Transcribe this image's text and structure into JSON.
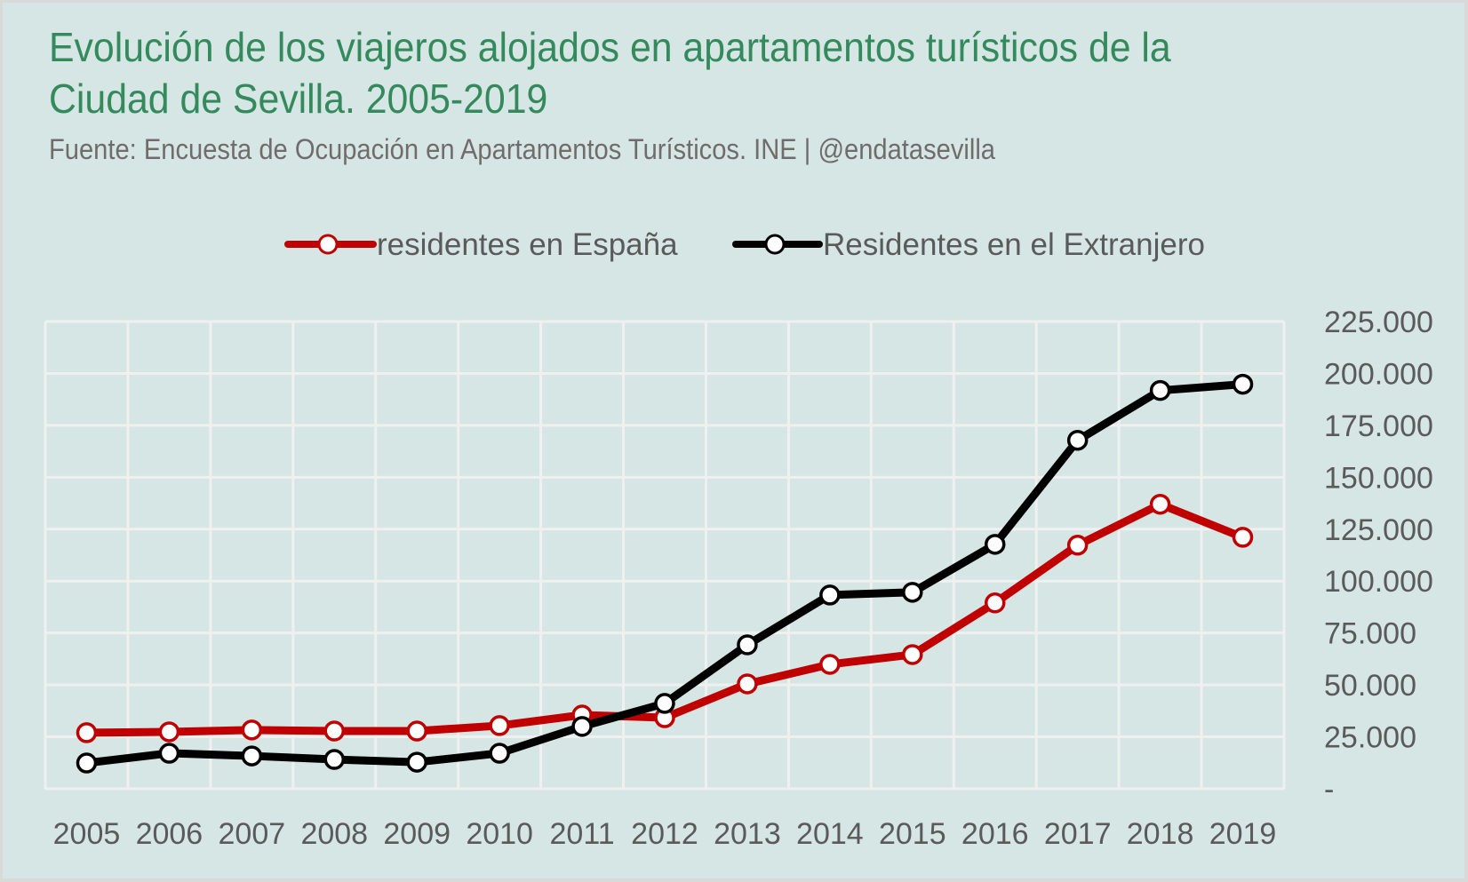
{
  "title": "Evolución de los viajeros alojados en apartamentos turísticos de la Ciudad de Sevilla. 2005-2019",
  "subtitle": "Fuente: Encuesta de Ocupación en Apartamentos Turísticos. INE | @endatasevilla",
  "colors": {
    "background": "#d6e6e4",
    "frame": "#d9d9d9",
    "grid": "#f0f0f0",
    "title": "#348a5c",
    "subtitle": "#706c6c",
    "tick_text": "#5a5a5a",
    "series_espana": "#c00000",
    "series_extranjero": "#000000"
  },
  "chart_data": {
    "type": "line",
    "title": "Evolución de los viajeros alojados en apartamentos turísticos de la Ciudad de Sevilla. 2005-2019",
    "subtitle": "Fuente: Encuesta de Ocupación en Apartamentos Turísticos. INE | @endatasevilla",
    "xlabel": "",
    "ylabel": "",
    "x": [
      "2005",
      "2006",
      "2007",
      "2008",
      "2009",
      "2010",
      "2011",
      "2012",
      "2013",
      "2014",
      "2015",
      "2016",
      "2017",
      "2018",
      "2019"
    ],
    "series": [
      {
        "name": "residentes en España",
        "color": "#c00000",
        "values": [
          27000,
          27400,
          28300,
          27800,
          27800,
          30400,
          35500,
          34200,
          50500,
          59900,
          64600,
          89500,
          117300,
          137000,
          121100
        ]
      },
      {
        "name": "Residentes en el Extranjero",
        "color": "#000000",
        "values": [
          12400,
          17100,
          15800,
          14100,
          12800,
          17100,
          30000,
          41100,
          69300,
          93300,
          94600,
          117700,
          167800,
          191800,
          194800
        ]
      }
    ],
    "ylim": [
      0,
      225000
    ],
    "yticks": [
      0,
      25000,
      50000,
      75000,
      100000,
      125000,
      150000,
      175000,
      200000,
      225000
    ],
    "ytick_labels": [
      "-",
      "25.000",
      "50.000",
      "75.000",
      "100.000",
      "125.000",
      "150.000",
      "175.000",
      "200.000",
      "225.000"
    ],
    "y_axis_position": "right",
    "grid": true,
    "legend_position": "top-center"
  }
}
